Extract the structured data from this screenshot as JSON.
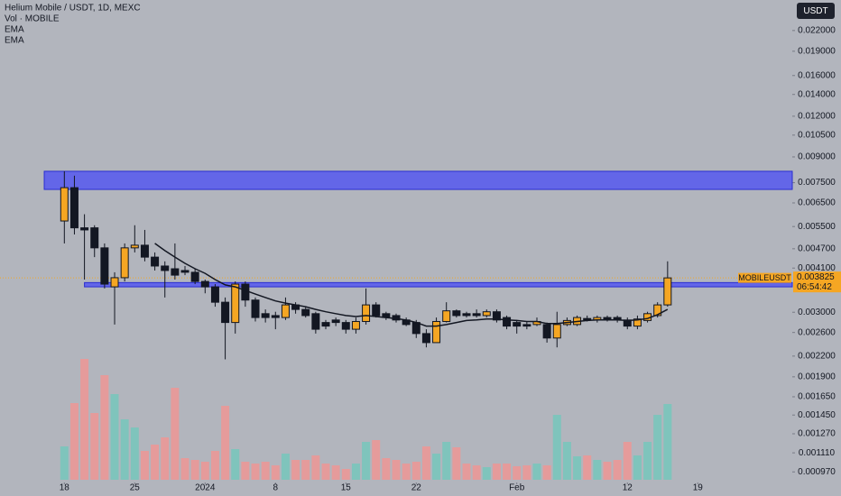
{
  "header": {
    "title": "Helium Mobile / USDT, 1D, MEXC",
    "indicators": [
      "Vol · MOBILE",
      "EMA",
      "EMA"
    ],
    "currency_button": "USDT",
    "symbol_tag": "MOBILEUSDT",
    "countdown": "06:54:42"
  },
  "chart_data": {
    "type": "candlestick",
    "log_scale": true,
    "xlim": [
      -6.4,
      72.4
    ],
    "xticks": [
      {
        "value": 0,
        "label": "18"
      },
      {
        "value": 7,
        "label": "25"
      },
      {
        "value": 14,
        "label": "2024"
      },
      {
        "value": 21,
        "label": "8"
      },
      {
        "value": 28,
        "label": "15"
      },
      {
        "value": 35,
        "label": "22"
      },
      {
        "value": 45,
        "label": "Feb"
      },
      {
        "value": 56,
        "label": "12"
      },
      {
        "value": 63,
        "label": "19"
      }
    ],
    "ylim": [
      0.0009,
      0.0273
    ],
    "yticks": [
      {
        "value": 0.022,
        "label": "0.022000"
      },
      {
        "value": 0.019,
        "label": "0.019000"
      },
      {
        "value": 0.016,
        "label": "0.016000"
      },
      {
        "value": 0.014,
        "label": "0.014000"
      },
      {
        "value": 0.012,
        "label": "0.012000"
      },
      {
        "value": 0.0105,
        "label": "0.010500"
      },
      {
        "value": 0.009,
        "label": "0.009000"
      },
      {
        "value": 0.0075,
        "label": "0.007500"
      },
      {
        "value": 0.0065,
        "label": "0.006500"
      },
      {
        "value": 0.0055,
        "label": "0.005500"
      },
      {
        "value": 0.0047,
        "label": "0.004700"
      },
      {
        "value": 0.0041,
        "label": "0.004100"
      },
      {
        "value": 0.003,
        "label": "0.003000"
      },
      {
        "value": 0.0026,
        "label": "0.002600"
      },
      {
        "value": 0.0022,
        "label": "0.002200"
      },
      {
        "value": 0.0019,
        "label": "0.001900"
      },
      {
        "value": 0.00165,
        "label": "0.001650"
      },
      {
        "value": 0.00145,
        "label": "0.001450"
      },
      {
        "value": 0.00127,
        "label": "0.001270"
      },
      {
        "value": 0.00111,
        "label": "0.001110"
      },
      {
        "value": 0.00097,
        "label": "0.000970"
      }
    ],
    "up_color": "#f5a623",
    "down_color": "#131722",
    "volume_up_color": "#7fc4bc",
    "volume_down_color": "#e59b9b",
    "ema_color": "#131722",
    "zone_color": "#5558f0",
    "price_color": "#f5a623",
    "open": [
      0.00572,
      0.00724,
      0.00545,
      0.00545,
      0.00473,
      0.00359,
      0.00383,
      0.00473,
      0.00482,
      0.00443,
      0.00416,
      0.00408,
      0.00403,
      0.00398,
      0.00373,
      0.00359,
      0.00322,
      0.00279,
      0.00366,
      0.00327,
      0.00297,
      0.00293,
      0.00289,
      0.00316,
      0.00306,
      0.00297,
      0.00279,
      0.00284,
      0.00279,
      0.00266,
      0.00281,
      0.00316,
      0.00297,
      0.00293,
      0.00284,
      0.00279,
      0.00258,
      0.00242,
      0.00281,
      0.00303,
      0.00297,
      0.00297,
      0.00293,
      0.00301,
      0.00289,
      0.00279,
      0.00275,
      0.00275,
      0.00275,
      0.0025,
      0.00275,
      0.00275,
      0.00287,
      0.00284,
      0.00289,
      0.00289,
      0.00284,
      0.00272,
      0.00283,
      0.00293,
      0.00316
    ],
    "high": [
      0.00813,
      0.00788,
      0.006,
      0.00555,
      0.00488,
      0.00398,
      0.00488,
      0.00555,
      0.00537,
      0.00458,
      0.0043,
      0.00488,
      0.00416,
      0.00408,
      0.00378,
      0.00366,
      0.00333,
      0.00373,
      0.00373,
      0.00333,
      0.00306,
      0.00301,
      0.00333,
      0.00322,
      0.00312,
      0.00301,
      0.00284,
      0.00289,
      0.00284,
      0.00289,
      0.00355,
      0.00322,
      0.00301,
      0.00297,
      0.00289,
      0.00284,
      0.00266,
      0.00289,
      0.00322,
      0.00306,
      0.00301,
      0.00306,
      0.00306,
      0.00306,
      0.00293,
      0.00284,
      0.00281,
      0.00289,
      0.00279,
      0.00301,
      0.00289,
      0.00293,
      0.00293,
      0.00293,
      0.00293,
      0.00293,
      0.00289,
      0.00293,
      0.00301,
      0.00322,
      0.0043
    ],
    "low": [
      0.00488,
      0.0052,
      0.00378,
      0.00443,
      0.00355,
      0.00275,
      0.00373,
      0.00458,
      0.0043,
      0.00403,
      0.00333,
      0.00378,
      0.0039,
      0.00366,
      0.00343,
      0.00312,
      0.00215,
      0.00258,
      0.00312,
      0.00281,
      0.00279,
      0.00266,
      0.00284,
      0.00297,
      0.00289,
      0.00258,
      0.00266,
      0.00272,
      0.00258,
      0.00258,
      0.00275,
      0.00289,
      0.00284,
      0.00279,
      0.00272,
      0.0025,
      0.00234,
      0.00242,
      0.00279,
      0.00289,
      0.00289,
      0.00289,
      0.00289,
      0.00279,
      0.00266,
      0.00258,
      0.00266,
      0.00272,
      0.00242,
      0.00234,
      0.00272,
      0.00272,
      0.00281,
      0.00279,
      0.00281,
      0.00279,
      0.00266,
      0.00266,
      0.00279,
      0.00289,
      0.00312
    ],
    "close": [
      0.00724,
      0.00545,
      0.00537,
      0.00473,
      0.00366,
      0.00383,
      0.00473,
      0.00482,
      0.00443,
      0.00416,
      0.00403,
      0.0039,
      0.00398,
      0.00373,
      0.00359,
      0.00322,
      0.00279,
      0.00366,
      0.00327,
      0.00289,
      0.00289,
      0.00289,
      0.00316,
      0.00306,
      0.00293,
      0.00266,
      0.00272,
      0.00279,
      0.00266,
      0.00281,
      0.00316,
      0.00293,
      0.00289,
      0.00284,
      0.00275,
      0.00258,
      0.00242,
      0.00281,
      0.00303,
      0.00293,
      0.00293,
      0.00293,
      0.00301,
      0.00284,
      0.00272,
      0.00272,
      0.00272,
      0.00281,
      0.0025,
      0.00275,
      0.00283,
      0.00289,
      0.00284,
      0.00289,
      0.00286,
      0.00284,
      0.00272,
      0.00286,
      0.00297,
      0.00316,
      0.003825
    ],
    "volume": [
      37,
      85,
      134,
      74,
      116,
      95,
      67,
      58,
      32,
      39,
      47,
      102,
      24,
      22,
      20,
      32,
      82,
      34,
      20,
      18,
      20,
      16,
      29,
      22,
      22,
      27,
      18,
      16,
      12,
      18,
      42,
      44,
      24,
      22,
      18,
      20,
      37,
      29,
      42,
      36,
      18,
      16,
      14,
      18,
      18,
      15,
      16,
      18,
      16,
      72,
      42,
      26,
      27,
      22,
      20,
      22,
      42,
      27,
      42,
      72,
      84
    ],
    "ema": [
      null,
      null,
      null,
      null,
      null,
      null,
      null,
      null,
      null,
      0.00488,
      0.00464,
      0.00443,
      0.00424,
      0.00408,
      0.00395,
      0.00378,
      0.00364,
      0.00359,
      0.0035,
      0.00341,
      0.00333,
      0.00325,
      0.0032,
      0.00316,
      0.00312,
      0.00306,
      0.00301,
      0.00297,
      0.00293,
      0.00291,
      0.00293,
      0.00291,
      0.00289,
      0.00287,
      0.00284,
      0.00279,
      0.00272,
      0.00272,
      0.00275,
      0.00279,
      0.00283,
      0.00284,
      0.00286,
      0.00286,
      0.00284,
      0.00283,
      0.00281,
      0.00281,
      0.00277,
      0.00277,
      0.00279,
      0.00281,
      0.00283,
      0.00284,
      0.00284,
      0.00284,
      0.00283,
      0.00284,
      0.00287,
      0.00295,
      0.00306
    ],
    "zones": [
      {
        "start": -2,
        "from": 0.00715,
        "to": 0.00813
      },
      {
        "start": 2,
        "from": 0.00359,
        "to": 0.0037
      }
    ],
    "last_price": 0.003825
  }
}
